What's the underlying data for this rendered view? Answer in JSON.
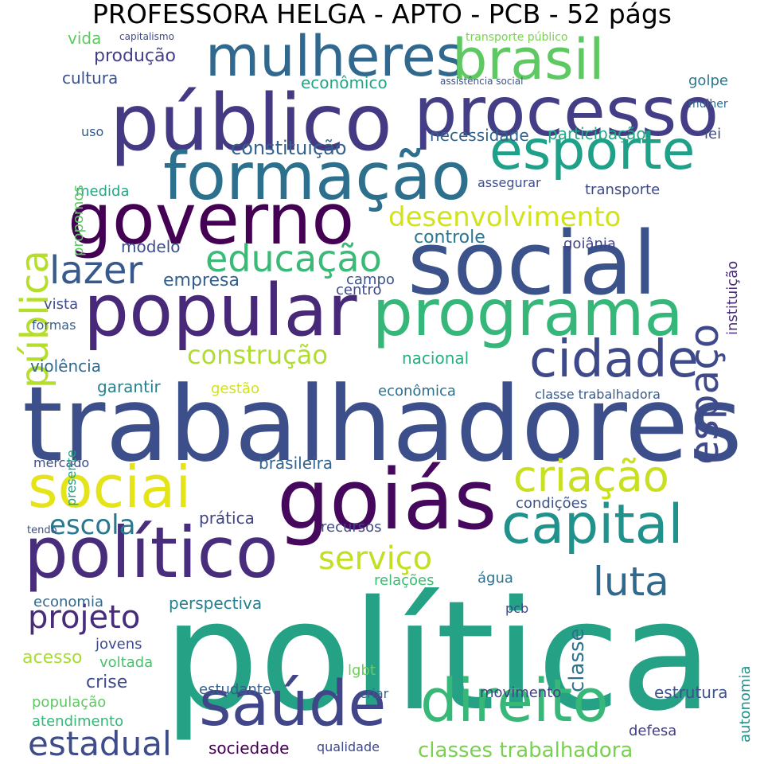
{
  "title": "PROFESSORA HELGA - APTO - PCB - 52 págs",
  "words": [
    {
      "text": "política",
      "color": "#25a186"
    },
    {
      "text": "trabalhadores",
      "color": "#3c4f8a"
    },
    {
      "text": "público",
      "color": "#443a83"
    },
    {
      "text": "processo",
      "color": "#433e85"
    },
    {
      "text": "social",
      "color": "#3b528b"
    },
    {
      "text": "goiás",
      "color": "#46085c"
    },
    {
      "text": "governo",
      "color": "#440154"
    },
    {
      "text": "formação",
      "color": "#2d708e"
    },
    {
      "text": "popular",
      "color": "#482878"
    },
    {
      "text": "programa",
      "color": "#35b779"
    },
    {
      "text": "político",
      "color": "#472d7b"
    },
    {
      "text": "mulheres",
      "color": "#31688e"
    },
    {
      "text": "brasil",
      "color": "#5ec962"
    },
    {
      "text": "esporte",
      "color": "#1fa088"
    },
    {
      "text": "cidade",
      "color": "#3e4989"
    },
    {
      "text": "capital",
      "color": "#21918c"
    },
    {
      "text": "direito",
      "color": "#37b878"
    },
    {
      "text": "saúde",
      "color": "#404688"
    },
    {
      "text": "sociai",
      "color": "#e5e419"
    },
    {
      "text": "criação",
      "color": "#c8e020"
    },
    {
      "text": "pública",
      "color": "#b5de2b"
    },
    {
      "text": "espaço",
      "color": "#3e4a89"
    },
    {
      "text": "lazer",
      "color": "#38598c"
    },
    {
      "text": "educação",
      "color": "#3aba76"
    },
    {
      "text": "desenvolvimento",
      "color": "#d2e21b"
    },
    {
      "text": "serviço",
      "color": "#c2df23"
    },
    {
      "text": "luta",
      "color": "#30698e"
    },
    {
      "text": "estadual",
      "color": "#3e4c8a"
    },
    {
      "text": "projeto",
      "color": "#472c7a"
    },
    {
      "text": "escola",
      "color": "#2a788e"
    },
    {
      "text": "construção",
      "color": "#b0dd2f"
    },
    {
      "text": "classes trabalhadora",
      "color": "#7ad151"
    },
    {
      "text": "constituição",
      "color": "#33638d"
    },
    {
      "text": "controle",
      "color": "#2a768e"
    },
    {
      "text": "empresa",
      "color": "#355f8d"
    },
    {
      "text": "produção",
      "color": "#424086"
    },
    {
      "text": "cultura",
      "color": "#3b518b"
    },
    {
      "text": "vida",
      "color": "#5ec962"
    },
    {
      "text": "econômico",
      "color": "#21a685"
    },
    {
      "text": "necessidade",
      "color": "#33638d"
    },
    {
      "text": "participação",
      "color": "#22a785"
    },
    {
      "text": "transporte",
      "color": "#3e4989"
    },
    {
      "text": "assegurar",
      "color": "#3e4c8a"
    },
    {
      "text": "modelo",
      "color": "#3d4e8a"
    },
    {
      "text": "medida",
      "color": "#22a884"
    },
    {
      "text": "violência",
      "color": "#31688e"
    },
    {
      "text": "garantir",
      "color": "#277f8e"
    },
    {
      "text": "gestão",
      "color": "#d2e21b"
    },
    {
      "text": "nacional",
      "color": "#28ae80"
    },
    {
      "text": "econômica",
      "color": "#2d708e"
    },
    {
      "text": "brasileira",
      "color": "#32658e"
    },
    {
      "text": "condições",
      "color": "#3b528b"
    },
    {
      "text": "prática",
      "color": "#404588"
    },
    {
      "text": "recursos",
      "color": "#3f4788"
    },
    {
      "text": "relações",
      "color": "#3dbc74"
    },
    {
      "text": "água",
      "color": "#2c728e"
    },
    {
      "text": "perspectiva",
      "color": "#277f8e"
    },
    {
      "text": "economia",
      "color": "#31688e"
    },
    {
      "text": "acesso",
      "color": "#a8db34"
    },
    {
      "text": "jovens",
      "color": "#3e4989"
    },
    {
      "text": "voltada",
      "color": "#4ac16d"
    },
    {
      "text": "crise",
      "color": "#3e4a89"
    },
    {
      "text": "população",
      "color": "#5ec962"
    },
    {
      "text": "atendimento",
      "color": "#35b779"
    },
    {
      "text": "estudante",
      "color": "#355f8d"
    },
    {
      "text": "sociedade",
      "color": "#440154"
    },
    {
      "text": "qualidade",
      "color": "#3e4989"
    },
    {
      "text": "movimento",
      "color": "#424086"
    },
    {
      "text": "estrutura",
      "color": "#3b528b"
    },
    {
      "text": "defesa",
      "color": "#433e85"
    },
    {
      "text": "autonomia",
      "color": "#21918c"
    },
    {
      "text": "classe",
      "color": "#2c728e"
    },
    {
      "text": "instituição",
      "color": "#472d7b"
    },
    {
      "text": "goiânia",
      "color": "#404588"
    },
    {
      "text": "centro",
      "color": "#3e4989"
    },
    {
      "text": "campo",
      "color": "#3b528b"
    },
    {
      "text": "vista",
      "color": "#3e4c8a"
    },
    {
      "text": "formas",
      "color": "#35608d"
    },
    {
      "text": "lei",
      "color": "#3e4989"
    },
    {
      "text": "golpe",
      "color": "#2a788e"
    },
    {
      "text": "mulher",
      "color": "#31688e"
    },
    {
      "text": "uso",
      "color": "#365c8d"
    },
    {
      "text": "mercado",
      "color": "#3e4c8a"
    },
    {
      "text": "presente",
      "color": "#20a486"
    },
    {
      "text": "classe trabalhadora",
      "color": "#38598c"
    },
    {
      "text": "lgbt",
      "color": "#6ccd5a"
    },
    {
      "text": "pcb",
      "color": "#3e4989"
    },
    {
      "text": "criar",
      "color": "#355e8d"
    },
    {
      "text": "tendo",
      "color": "#3d4e8a"
    },
    {
      "text": "capitalismo",
      "color": "#3e4989"
    },
    {
      "text": "propomos",
      "color": "#5ec962"
    },
    {
      "text": "transporte público",
      "color": "#7ad151"
    },
    {
      "text": "assistência social",
      "color": "#3b528b"
    }
  ]
}
